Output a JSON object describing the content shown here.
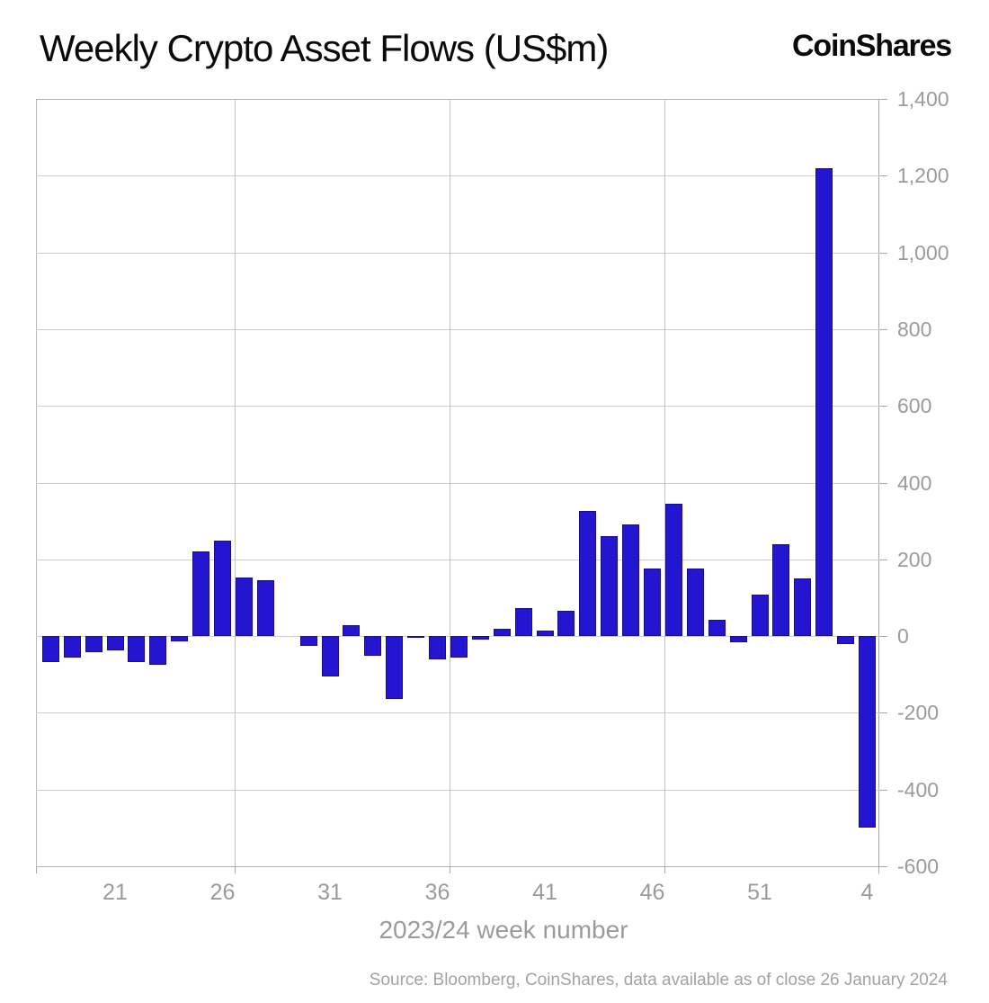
{
  "header": {
    "title": "Weekly Crypto Asset Flows (US$m)",
    "logo": "CoinShares"
  },
  "footer": {
    "source": "Source: Bloomberg, CoinShares, data available as of close 26 January 2024"
  },
  "chart_data": {
    "type": "bar",
    "title": "Weekly Crypto Asset Flows (US$m)",
    "xlabel": "2023/24 week number",
    "ylabel": "",
    "ylim": [
      -600,
      1400
    ],
    "grid": true,
    "bar_color": "#2415d1",
    "bar_border_color": "#170d8c",
    "grid_color": "#cdcdcd",
    "label_color": "#9b9b9b",
    "categories": [
      "18",
      "19",
      "20",
      "21",
      "22",
      "23",
      "24",
      "25",
      "26",
      "27",
      "28",
      "29",
      "30",
      "31",
      "32",
      "33",
      "34",
      "35",
      "36",
      "37",
      "38",
      "39",
      "40",
      "41",
      "42",
      "43",
      "44",
      "45",
      "46",
      "47",
      "48",
      "49",
      "50",
      "51",
      "52",
      "1",
      "2",
      "3",
      "4"
    ],
    "values": [
      -68,
      -56,
      -42,
      -37,
      -67,
      -74,
      -14,
      220,
      248,
      153,
      145,
      0,
      -25,
      -106,
      28,
      -51,
      -165,
      -5,
      -60,
      -56,
      -9,
      20,
      74,
      14,
      65,
      325,
      260,
      290,
      175,
      345,
      175,
      43,
      -16,
      108,
      240,
      150,
      1220,
      -21,
      -500
    ],
    "x_tick_labels": [
      "21",
      "26",
      "31",
      "36",
      "41",
      "46",
      "51",
      "4"
    ],
    "x_tick_indices": [
      3,
      8,
      13,
      18,
      23,
      28,
      33,
      38
    ],
    "y_tick_labels": [
      "1,400",
      "1,200",
      "1,000",
      "800",
      "600",
      "400",
      "200",
      "0",
      "-200",
      "-400",
      "-600"
    ],
    "y_tick_values": [
      1400,
      1200,
      1000,
      800,
      600,
      400,
      200,
      0,
      -200,
      -400,
      -600
    ],
    "vertical_gridline_indices": [
      8.58,
      18.58,
      28.58
    ],
    "legend": null
  }
}
